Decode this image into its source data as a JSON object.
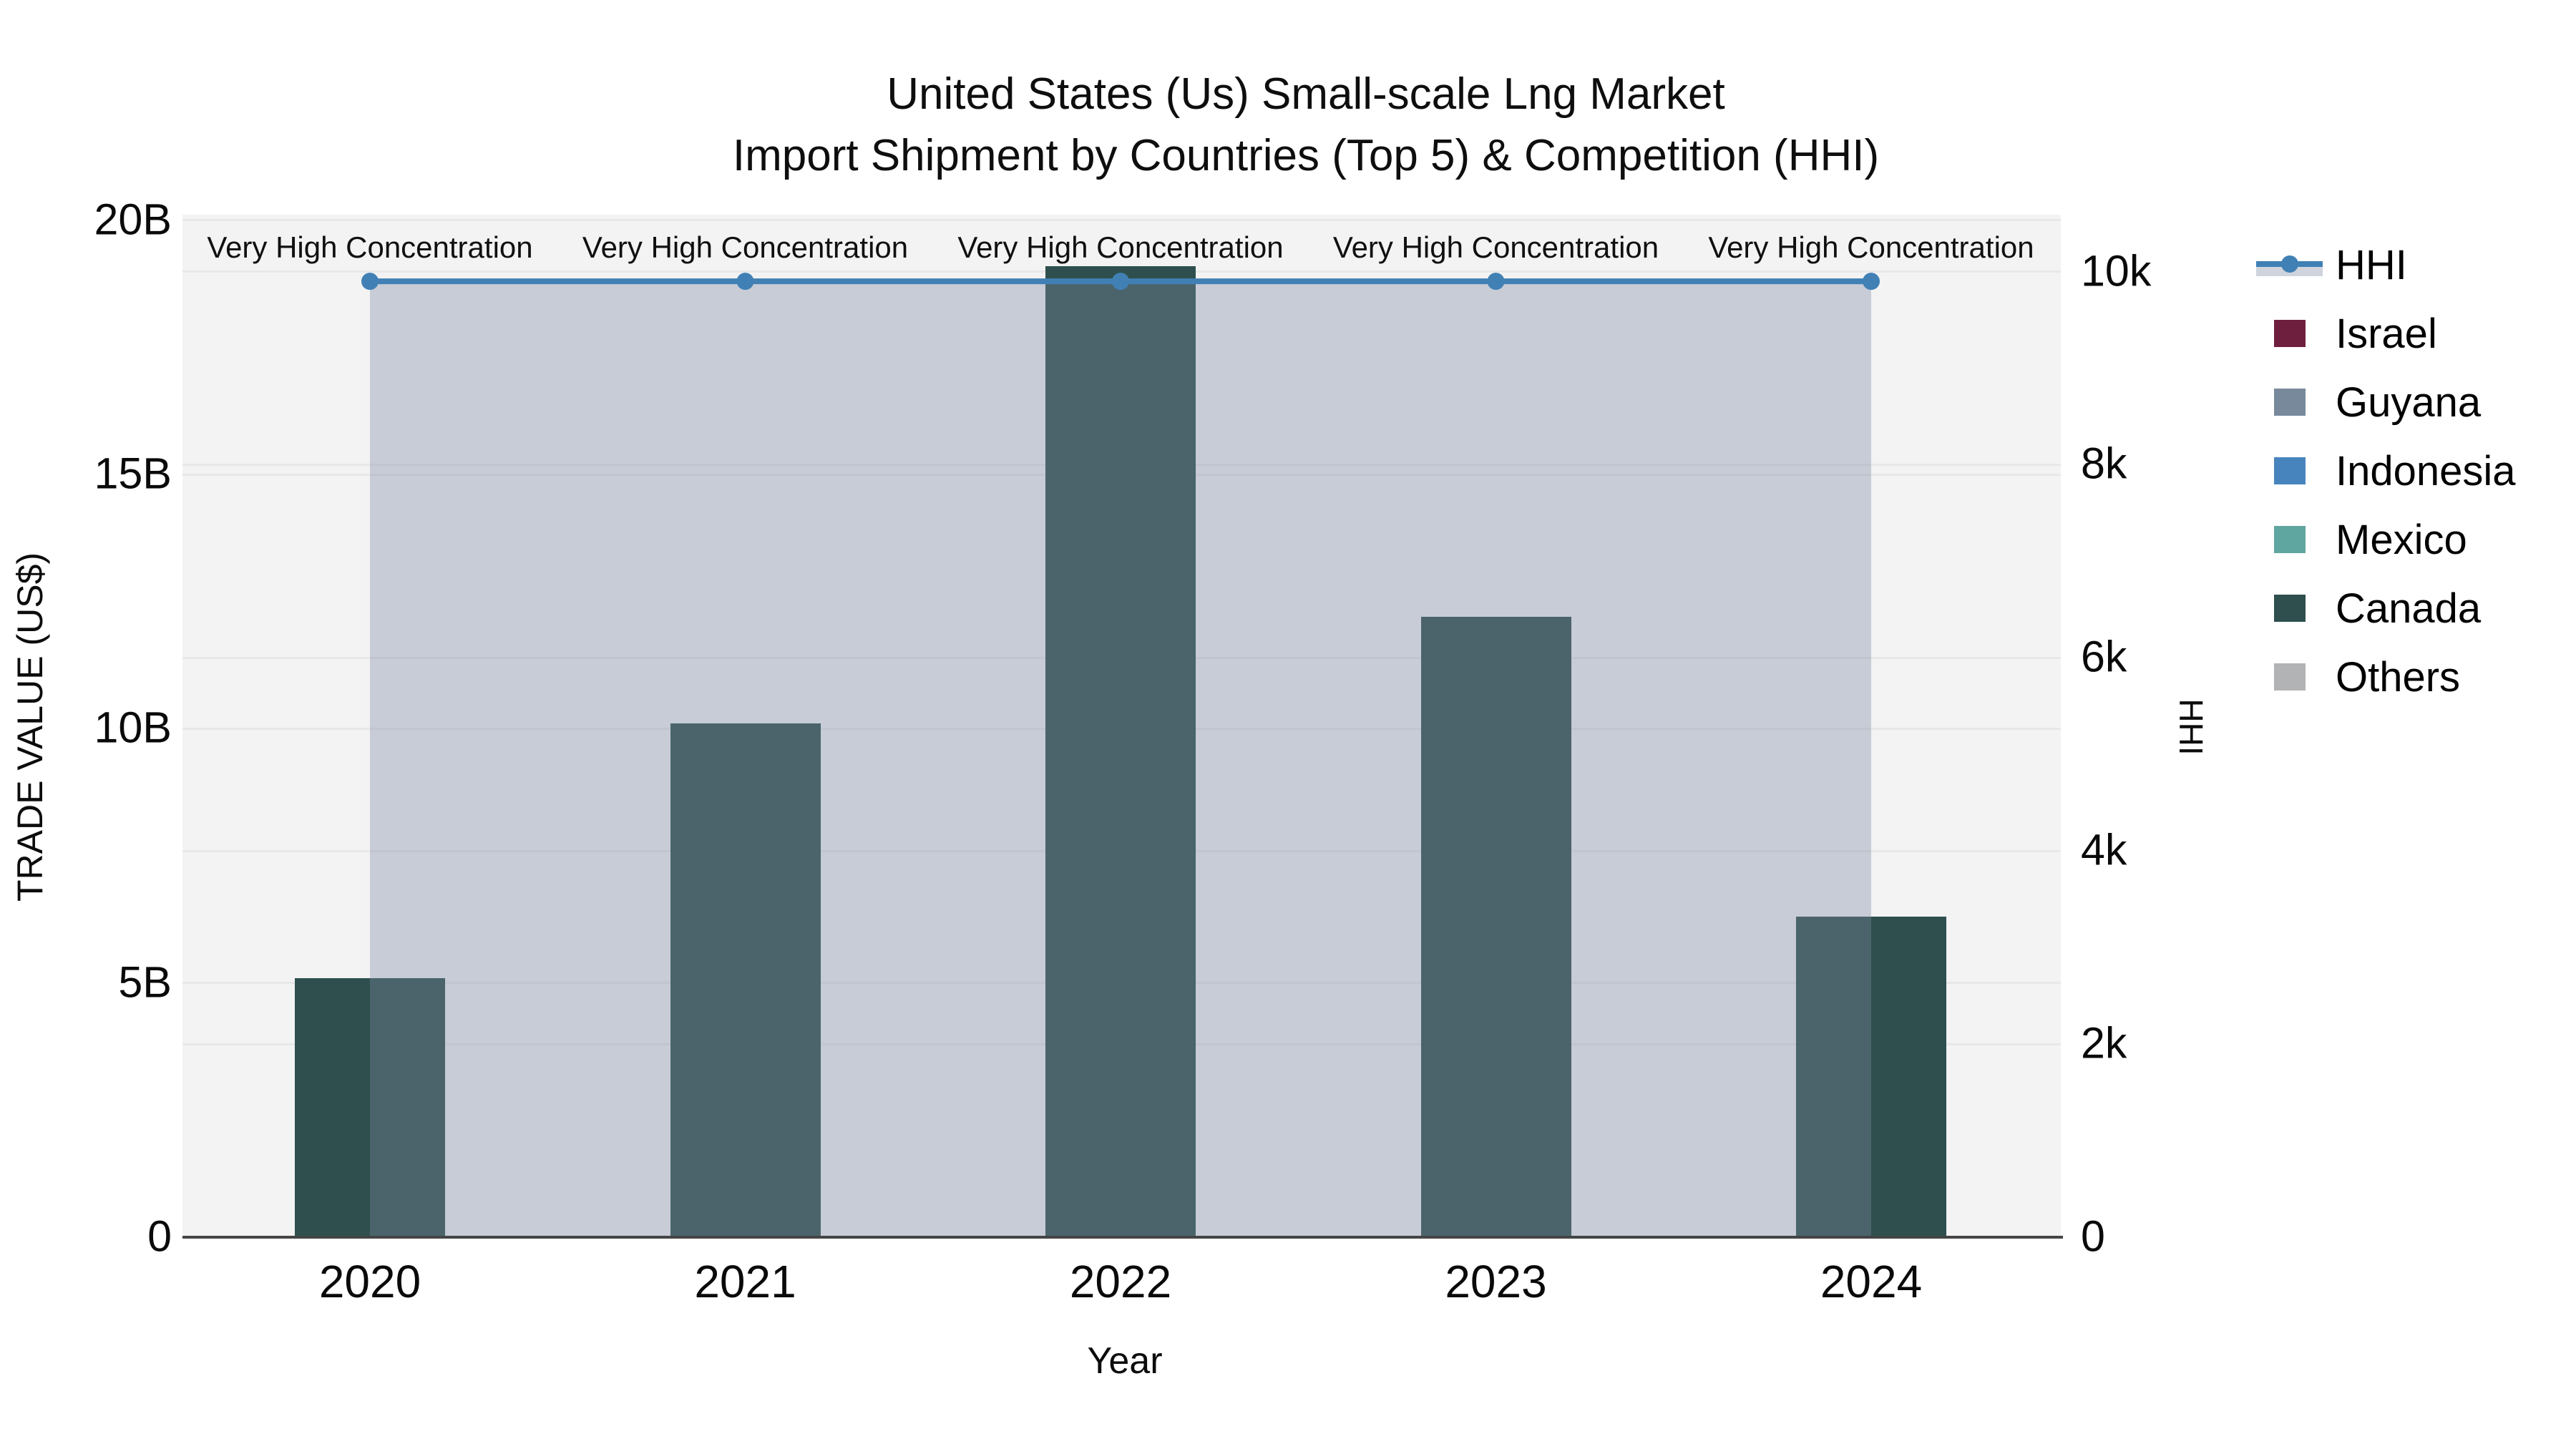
{
  "title": {
    "line1": "United States (Us) Small-scale Lng Market",
    "line2": "Import Shipment by Countries (Top 5) & Competition (HHI)"
  },
  "axes": {
    "x": {
      "title": "Year",
      "ticks": [
        "2020",
        "2021",
        "2022",
        "2023",
        "2024"
      ]
    },
    "y_left": {
      "title": "TRADE VALUE (US$)",
      "ticks": [
        "0",
        "5B",
        "10B",
        "15B",
        "20B"
      ],
      "tick_values_B": [
        0,
        5,
        10,
        15,
        20
      ],
      "max_value_B": 20.11
    },
    "y_right": {
      "title": "HHI",
      "ticks": [
        "0",
        "2k",
        "4k",
        "6k",
        "8k",
        "10k"
      ],
      "tick_values": [
        0,
        2000,
        4000,
        6000,
        8000,
        10000
      ],
      "max_value": 10590
    }
  },
  "chart_data": {
    "type": "bar+line",
    "title": "United States (Us) Small-scale Lng Market Import Shipment by Countries (Top 5) & Competition (HHI)",
    "xlabel": "Year",
    "ylabel_left": "TRADE VALUE (US$)",
    "ylabel_right": "HHI",
    "categories": [
      2020,
      2021,
      2022,
      2023,
      2024
    ],
    "series": [
      {
        "name": "Canada",
        "type": "bar",
        "axis": "left",
        "unit": "billion US$",
        "values": [
          5.1,
          10.1,
          19.1,
          12.2,
          6.3
        ],
        "color": "#2e4f4d"
      },
      {
        "name": "HHI",
        "type": "line+area",
        "axis": "right",
        "values": [
          9900,
          9900,
          9900,
          9900,
          9900
        ],
        "line_color": "#4080b5",
        "area_color": "rgba(124,138,162,0.37)"
      }
    ],
    "annotations": [
      "Very High Concentration",
      "Very High Concentration",
      "Very High Concentration",
      "Very High Concentration",
      "Very High Concentration"
    ],
    "legend_position": "right",
    "grid": true,
    "left_axis_range_B": [
      0,
      20.11
    ],
    "right_axis_range": [
      0,
      10590
    ]
  },
  "legend": {
    "items": [
      {
        "label": "HHI",
        "type": "line",
        "color": "#4080b5"
      },
      {
        "label": "Israel",
        "type": "swatch",
        "color": "#6f1f3e"
      },
      {
        "label": "Guyana",
        "type": "swatch",
        "color": "#78899c"
      },
      {
        "label": "Indonesia",
        "type": "swatch",
        "color": "#4784be"
      },
      {
        "label": "Mexico",
        "type": "swatch",
        "color": "#5fa5a0"
      },
      {
        "label": "Canada",
        "type": "swatch",
        "color": "#2e4f4d"
      },
      {
        "label": "Others",
        "type": "swatch",
        "color": "#b1b3b5"
      }
    ]
  },
  "colors": {
    "plot_background": "#f3f3f4",
    "gridline": "#e7e8e9",
    "axis_line": "#454545",
    "bar": "#2e4f4d",
    "hhi_line": "#4080b5",
    "area_fill": "rgba(124,138,162,0.37)",
    "text": "#0e0e0e"
  }
}
